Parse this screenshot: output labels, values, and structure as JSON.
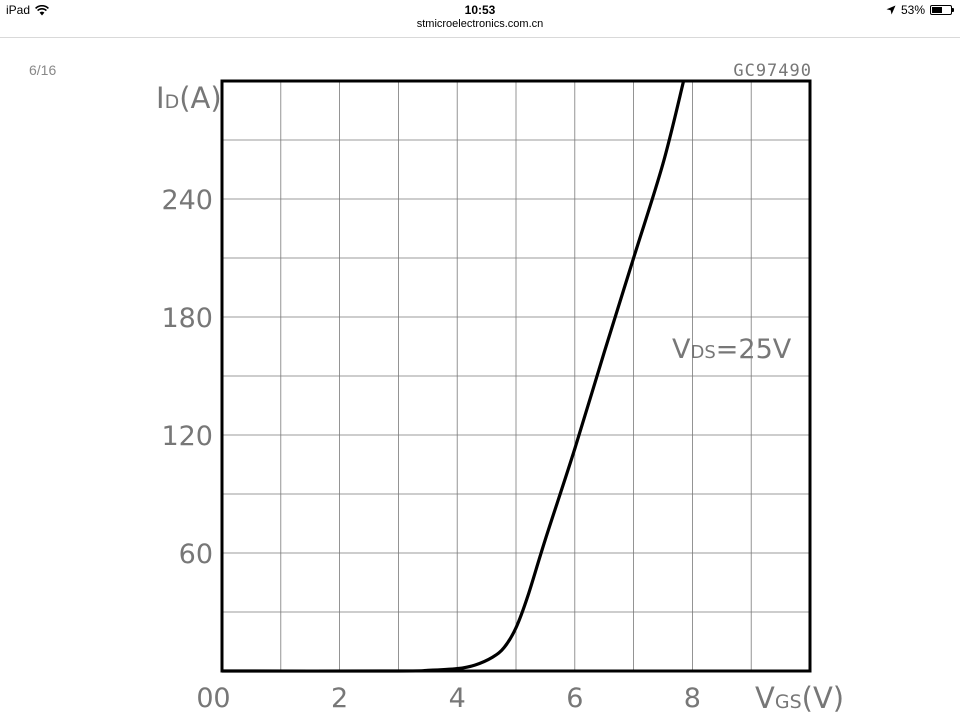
{
  "status_bar": {
    "device": "iPad",
    "time": "10:53",
    "battery": "53%",
    "battery_level": 0.53
  },
  "browser": {
    "url": "stmicroelectronics.com.cn"
  },
  "document": {
    "page_counter": "6/16"
  },
  "chart_data": {
    "type": "line",
    "figure_code": "GC97490",
    "annotation": "VDS=25V",
    "xlabel": "VGS(V)",
    "ylabel": "ID(A)",
    "xlim": [
      0,
      10
    ],
    "ylim": [
      0,
      300
    ],
    "x_tick_labels": [
      "0",
      "2",
      "4",
      "6",
      "8"
    ],
    "x_ticks": [
      0,
      2,
      4,
      6,
      8
    ],
    "y_tick_labels": [
      "60",
      "120",
      "180",
      "240"
    ],
    "y_ticks": [
      60,
      120,
      180,
      240
    ],
    "grid": true,
    "series": [
      {
        "x": [
          0,
          3,
          3.5,
          4,
          4.3,
          4.6,
          4.8,
          5.0,
          5.2,
          5.5,
          6.0,
          6.5,
          7.0,
          7.5,
          7.85
        ],
        "values": [
          0,
          0,
          0.3,
          1.2,
          3,
          7,
          12,
          22,
          38,
          67,
          113,
          162,
          210,
          258,
          300
        ]
      }
    ]
  }
}
